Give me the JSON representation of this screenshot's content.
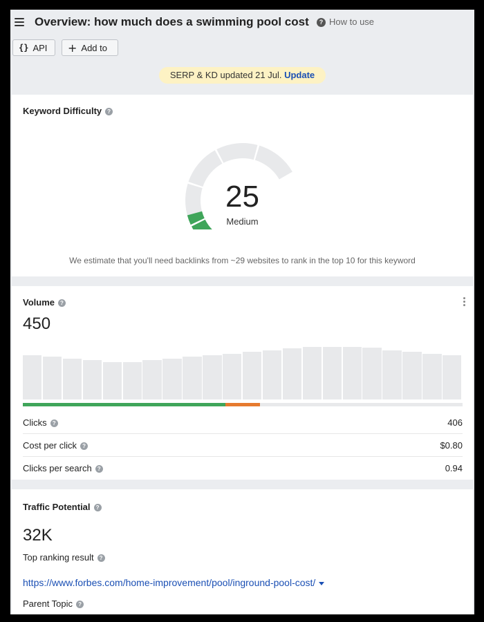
{
  "header": {
    "title": "Overview: how much does a swimming pool cost",
    "how_to_use": "How to use",
    "api_label": "API",
    "api_icon": "{}",
    "add_to_label": "Add to",
    "add_icon": "+",
    "notice_text": "SERP & KD updated 21 Jul.",
    "notice_link": "Update"
  },
  "keyword_difficulty": {
    "title": "Keyword Difficulty",
    "value": "25",
    "level": "Medium",
    "note": "We estimate that you'll need backlinks from ~29 websites to rank in the top 10 for this keyword",
    "colors": {
      "filled": "#3fa55a",
      "empty": "#e8e9eb"
    }
  },
  "volume": {
    "title": "Volume",
    "value": "450",
    "trend": [
      0.76,
      0.74,
      0.7,
      0.68,
      0.64,
      0.64,
      0.68,
      0.7,
      0.74,
      0.76,
      0.79,
      0.82,
      0.85,
      0.88,
      0.9,
      0.91,
      0.91,
      0.89,
      0.85,
      0.82,
      0.79,
      0.76
    ],
    "clicks_share": {
      "paid": 0.46,
      "organic_extra": 0.08
    },
    "colors": {
      "green": "#3fa55a",
      "orange": "#e67a2e"
    },
    "metrics": [
      {
        "label": "Clicks",
        "value": "406"
      },
      {
        "label": "Cost per click",
        "value": "$0.80"
      },
      {
        "label": "Clicks per search",
        "value": "0.94"
      }
    ]
  },
  "traffic_potential": {
    "title": "Traffic Potential",
    "value": "32K",
    "top_result_label": "Top ranking result",
    "top_result_url": "https://www.forbes.com/home-improvement/pool/inground-pool-cost/",
    "parent_topic_label": "Parent Topic"
  }
}
